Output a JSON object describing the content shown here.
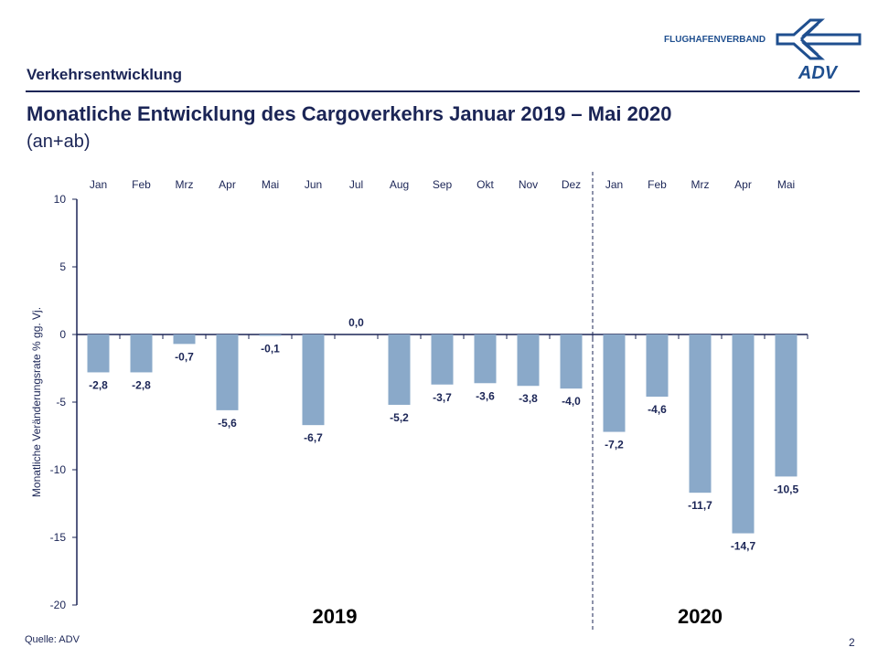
{
  "header": {
    "section": "Verkehrsentwicklung",
    "title": "Monatliche Entwicklung des Cargoverkehrs Januar 2019 – Mai 2020",
    "subtitle": "(an+ab)",
    "logo_text": "FLUGHAFENVERBAND",
    "logo_mark": "ADV"
  },
  "footer": {
    "source": "Quelle: ADV",
    "page": "2"
  },
  "colors": {
    "bar": "#8aa9c9",
    "text": "#1b2556"
  },
  "chart_data": {
    "type": "bar",
    "categories": [
      "Jan",
      "Feb",
      "Mrz",
      "Apr",
      "Mai",
      "Jun",
      "Jul",
      "Aug",
      "Sep",
      "Okt",
      "Nov",
      "Dez",
      "Jan",
      "Feb",
      "Mrz",
      "Apr",
      "Mai"
    ],
    "values": [
      -2.8,
      -2.8,
      -0.7,
      -5.6,
      -0.1,
      -6.7,
      0.0,
      -5.2,
      -3.7,
      -3.6,
      -3.8,
      -4.0,
      -7.2,
      -4.6,
      -11.7,
      -14.7,
      -10.5
    ],
    "data_labels": [
      "-2,8",
      "-2,8",
      "-0,7",
      "-5,6",
      "-0,1",
      "-6,7",
      "0,0",
      "-5,2",
      "-3,7",
      "-3,6",
      "-3,8",
      "-4,0",
      "-7,2",
      "-4,6",
      "-11,7",
      "-14,7",
      "-10,5"
    ],
    "groups": [
      {
        "label": "2019",
        "from": 0,
        "to": 11
      },
      {
        "label": "2020",
        "from": 12,
        "to": 16
      }
    ],
    "ylabel": "Monatliche Veränderungsrate % gg. Vj.",
    "ylim": [
      -20,
      10
    ],
    "yticks": [
      10,
      5,
      0,
      -5,
      -10,
      -15,
      -20
    ],
    "grid": false
  }
}
